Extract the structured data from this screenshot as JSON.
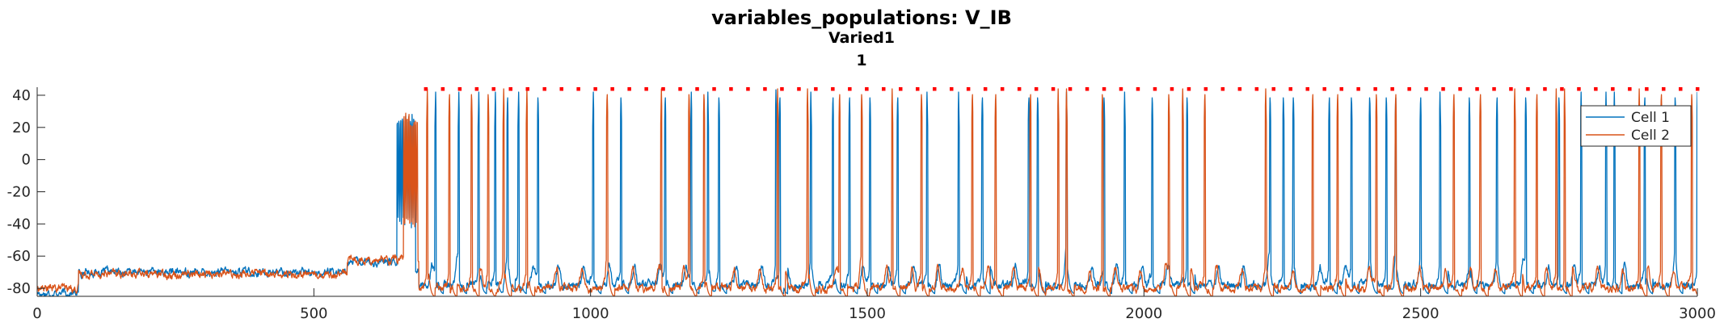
{
  "chart_data": {
    "type": "line",
    "title": "variables_populations: V_IB",
    "subtitle_lines": [
      "Varied1",
      "1"
    ],
    "xlim": [
      0,
      3000
    ],
    "ylim": [
      -85,
      45
    ],
    "xticks": [
      0,
      500,
      1000,
      1500,
      2000,
      2500,
      3000
    ],
    "xtick_labels": [
      "0",
      "500",
      "1000",
      "1500",
      "2000",
      "2500",
      "3000"
    ],
    "yticks": [
      40,
      20,
      0,
      -20,
      -40,
      -60,
      -80
    ],
    "ytick_labels": [
      "40",
      "20",
      "0",
      "-20",
      "-40",
      "-60",
      "-80"
    ],
    "grid": false,
    "legend_placement": "top-right",
    "colors": {
      "cell1": "#0072BD",
      "cell2": "#D95319",
      "raster": "#FF0000",
      "axes": "#262626"
    },
    "series": [
      {
        "name": "Cell 1",
        "color": "#0072BD",
        "baseline_segments": [
          [
            0,
            75,
            -83
          ],
          [
            75,
            560,
            -70
          ],
          [
            560,
            660,
            -64
          ],
          [
            660,
            690,
            -68
          ],
          [
            690,
            3000,
            -78
          ]
        ],
        "burst_intervals": [
          [
            650,
            684
          ]
        ],
        "spike_times": [
          720,
          762,
          798,
          828,
          850,
          870,
          905,
          1005,
          1055,
          1135,
          1182,
          1212,
          1232,
          1335,
          1342,
          1398,
          1438,
          1468,
          1505,
          1555,
          1608,
          1665,
          1708,
          1792,
          1808,
          1860,
          1928,
          1965,
          2015,
          2078,
          2228,
          2252,
          2270,
          2335,
          2375,
          2408,
          2438,
          2455,
          2500,
          2535,
          2588,
          2638,
          2690,
          2750,
          2790,
          2835,
          2850,
          2905,
          2960,
          3000
        ],
        "spike_peak": 42
      },
      {
        "name": "Cell 2",
        "color": "#D95319",
        "baseline_segments": [
          [
            0,
            75,
            -80
          ],
          [
            75,
            560,
            -71
          ],
          [
            560,
            660,
            -62
          ],
          [
            660,
            690,
            -62
          ],
          [
            690,
            3000,
            -80
          ]
        ],
        "burst_intervals": [
          [
            662,
            688
          ]
        ],
        "spike_times": [
          705,
          745,
          785,
          815,
          843,
          885,
          1030,
          1128,
          1178,
          1205,
          1338,
          1392,
          1450,
          1490,
          1545,
          1598,
          1690,
          1732,
          1795,
          1845,
          1860,
          1925,
          2045,
          2070,
          2110,
          2220,
          2305,
          2350,
          2420,
          2455,
          2560,
          2608,
          2670,
          2710,
          2745,
          2760,
          2895,
          2935,
          2990
        ],
        "spike_peak": 44
      }
    ],
    "raster": {
      "y": 44,
      "x_start": 702,
      "x_end": 3000,
      "count": 76
    }
  }
}
